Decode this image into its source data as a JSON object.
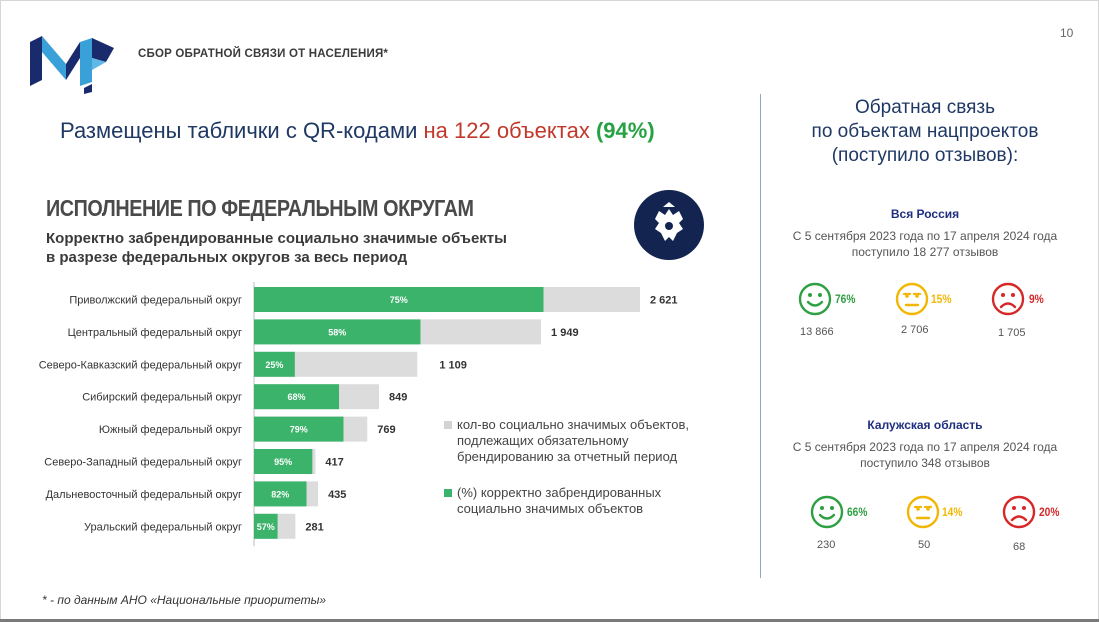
{
  "header": {
    "title": "СБОР ОБРАТНОЙ СВЯЗИ ОТ НАСЕЛЕНИЯ*",
    "page_number": "10"
  },
  "headline": {
    "part1": "Размещены таблички с QR-кодами ",
    "part2": "на 122 объектах ",
    "part3": "(94%)"
  },
  "chart_data": {
    "type": "bar",
    "title": "ИСПОЛНЕНИЕ ПО ФЕДЕРАЛЬНЫМ ОКРУГАМ",
    "subtitle_line1": "Корректно забрендированные социально значимые объекты",
    "subtitle_line2": "в разрезе федеральных округов за весь период",
    "categories": [
      "Приволжский федеральный округ",
      "Центральный федеральный округ",
      "Северо-Кавказский федеральный округ",
      "Сибирский федеральный округ",
      "Южный федеральный округ",
      "Северо-Западный федеральный округ",
      "Дальневосточный федеральный округ",
      "Уральский федеральный округ"
    ],
    "totals": [
      2621,
      1949,
      1109,
      849,
      769,
      417,
      435,
      281
    ],
    "total_labels": [
      "2 621",
      "1 949",
      "1 109",
      "849",
      "769",
      "417",
      "435",
      "281"
    ],
    "percent": [
      75,
      58,
      25,
      68,
      79,
      95,
      82,
      57
    ],
    "percent_labels": [
      "75%",
      "58%",
      "25%",
      "68%",
      "79%",
      "95%",
      "82%",
      "57%"
    ],
    "colors": {
      "total": "#dcdcdc",
      "percent": "#3cb36b"
    },
    "legend": [
      {
        "text": "кол-во социально значимых объектов, подлежащих обязательному брендированию за отчетный период",
        "color": "#d3d3d3"
      },
      {
        "text": "(%) корректно забрендированных социально значимых объектов",
        "color": "#3cb36b"
      }
    ]
  },
  "right_panel": {
    "title_line1": "Обратная связь",
    "title_line2": "по объектам нацпроектов",
    "title_line3": "(поступило отзывов):",
    "blocks": [
      {
        "name": "Вся Россия",
        "desc_line1": "С 5 сентября 2023 года по 17 апреля 2024 года",
        "desc_line2": "поступило 18 277 отзывов",
        "stats": [
          {
            "mood": "positive",
            "percent": "76%",
            "count": "13 866",
            "color": "#2ea043"
          },
          {
            "mood": "neutral",
            "percent": "15%",
            "count": "2 706",
            "color": "#f2b705"
          },
          {
            "mood": "negative",
            "percent": "9%",
            "count": "1 705",
            "color": "#d62828"
          }
        ]
      },
      {
        "name": "Калужская область",
        "desc_line1": "С 5 сентября 2023 года по 17 апреля 2024 года",
        "desc_line2": "поступило 348 отзывов",
        "stats": [
          {
            "mood": "positive",
            "percent": "66%",
            "count": "230",
            "color": "#2ea043"
          },
          {
            "mood": "neutral",
            "percent": "14%",
            "count": "50",
            "color": "#f2b705"
          },
          {
            "mood": "negative",
            "percent": "20%",
            "count": "68",
            "color": "#d62828"
          }
        ]
      }
    ]
  },
  "footnote": "* - по данным АНО «Национальные приоритеты»"
}
